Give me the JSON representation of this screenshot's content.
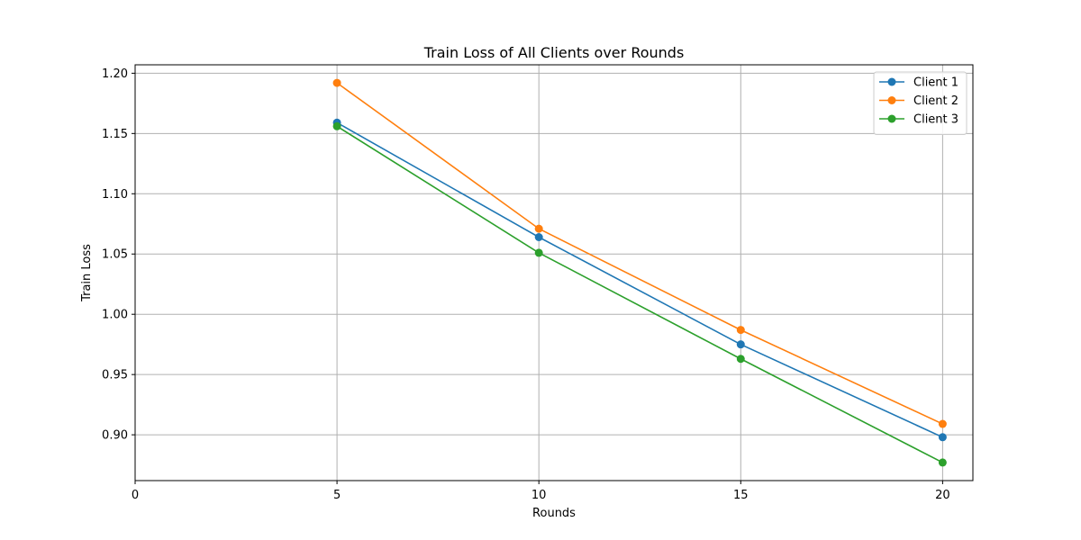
{
  "chart_data": {
    "type": "line",
    "title": "Train Loss of All Clients over Rounds",
    "xlabel": "Rounds",
    "ylabel": "Train Loss",
    "xlim": [
      0,
      20.75
    ],
    "ylim": [
      0.862,
      1.207
    ],
    "xticks": [
      0,
      5,
      10,
      15,
      20
    ],
    "yticks": [
      0.9,
      0.95,
      1.0,
      1.05,
      1.1,
      1.15,
      1.2
    ],
    "grid": true,
    "legend_position": "top-right",
    "x": [
      5,
      10,
      15,
      20
    ],
    "series": [
      {
        "name": "Client 1",
        "color": "#1f77b4",
        "values": [
          1.159,
          1.064,
          0.975,
          0.898
        ]
      },
      {
        "name": "Client 2",
        "color": "#ff7f0e",
        "values": [
          1.192,
          1.071,
          0.987,
          0.909
        ]
      },
      {
        "name": "Client 3",
        "color": "#2ca02c",
        "values": [
          1.156,
          1.051,
          0.963,
          0.877
        ]
      }
    ]
  }
}
